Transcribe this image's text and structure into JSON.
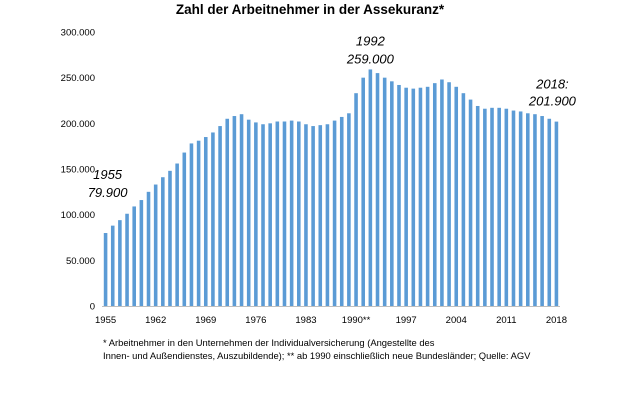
{
  "chart_data": {
    "type": "bar",
    "title": "Zahl der Arbeitnehmer in der Assekuranz*",
    "xlabel": "",
    "ylabel": "",
    "ylim": [
      0,
      300000
    ],
    "grid": false,
    "bar_color": "#5b9bd5",
    "y_ticks": [
      "0",
      "50.000",
      "100.000",
      "150.000",
      "200.000",
      "250.000",
      "300.000"
    ],
    "x_ticks": [
      {
        "year": 1955,
        "label": "1955"
      },
      {
        "year": 1962,
        "label": "1962"
      },
      {
        "year": 1969,
        "label": "1969"
      },
      {
        "year": 1976,
        "label": "1976"
      },
      {
        "year": 1983,
        "label": "1983"
      },
      {
        "year": 1990,
        "label": "1990**"
      },
      {
        "year": 1997,
        "label": "1997"
      },
      {
        "year": 2004,
        "label": "2004"
      },
      {
        "year": 2011,
        "label": "2011"
      },
      {
        "year": 2018,
        "label": "2018"
      }
    ],
    "categories": [
      1955,
      1956,
      1957,
      1958,
      1959,
      1960,
      1961,
      1962,
      1963,
      1964,
      1965,
      1966,
      1967,
      1968,
      1969,
      1970,
      1971,
      1972,
      1973,
      1974,
      1975,
      1976,
      1977,
      1978,
      1979,
      1980,
      1981,
      1982,
      1983,
      1984,
      1985,
      1986,
      1987,
      1988,
      1989,
      1990,
      1991,
      1992,
      1993,
      1994,
      1995,
      1996,
      1997,
      1998,
      1999,
      2000,
      2001,
      2002,
      2003,
      2004,
      2005,
      2006,
      2007,
      2008,
      2009,
      2010,
      2011,
      2012,
      2013,
      2014,
      2015,
      2016,
      2017,
      2018
    ],
    "values": [
      79900,
      88000,
      94000,
      101000,
      109000,
      116000,
      125000,
      133000,
      141000,
      148000,
      156000,
      168000,
      178000,
      181000,
      185000,
      190000,
      197000,
      205000,
      208000,
      210000,
      204000,
      201000,
      199000,
      200000,
      202000,
      202000,
      203000,
      202000,
      199000,
      197000,
      198000,
      199000,
      203000,
      207000,
      211000,
      233000,
      250000,
      259000,
      255000,
      250000,
      246000,
      242000,
      239000,
      238000,
      239000,
      240000,
      244000,
      248000,
      245000,
      240000,
      233000,
      226000,
      219000,
      216000,
      217000,
      217000,
      216000,
      214000,
      213000,
      211000,
      210000,
      208000,
      205000,
      201900
    ],
    "annotations": [
      {
        "line1": "1955",
        "line2": "79.900"
      },
      {
        "line1": "1992",
        "line2": "259.000"
      },
      {
        "line1": "2018:",
        "line2": "201.900"
      }
    ]
  },
  "footnote": {
    "line1": "* Arbeitnehmer in den Unternehmen der Individualversicherung (Angestellte des",
    "line2": "Innen- und Außendienstes, Auszubildende); ** ab 1990 einschließlich neue Bundesländer; Quelle: AGV"
  }
}
